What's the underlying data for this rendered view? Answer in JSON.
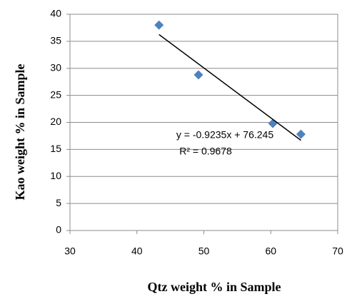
{
  "chart_data": {
    "type": "scatter",
    "x_label": "Qtz weight % in Sample",
    "y_label": "Kao weight % in Sample",
    "series": [
      {
        "color": "#4f81bd",
        "x": [
          43.3,
          49.2,
          60.3,
          64.5
        ],
        "values": [
          38,
          28.8,
          19.8,
          17.8
        ]
      }
    ],
    "trendline": {
      "slope": -0.9235,
      "intercept": 76.245,
      "equation": "y = -0.9235x + 76.245",
      "r2": "R² = 0.9678",
      "color": "#000000"
    },
    "xlim": [
      30,
      70
    ],
    "xticks": [
      30,
      40,
      50,
      60,
      70
    ],
    "ylim": [
      0,
      40
    ],
    "yticks": [
      0,
      5,
      10,
      15,
      20,
      25,
      30,
      35,
      40
    ],
    "grid": true
  }
}
